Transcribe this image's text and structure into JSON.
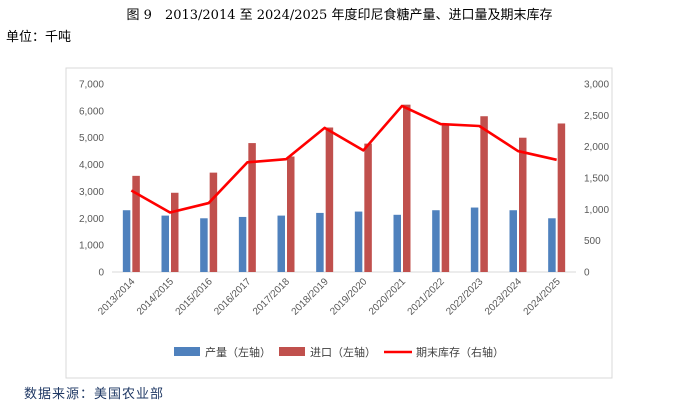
{
  "header": {
    "title": "图 9　2013/2014 至 2024/2025 年度印尼食糖产量、进口量及期末库存",
    "unit": "单位：千吨"
  },
  "footer": {
    "source": "数据来源：美国农业部"
  },
  "colors": {
    "production": "#4f81bd",
    "imports": "#c0504d",
    "stocks": "#ff0000"
  },
  "chart_data": {
    "type": "bar",
    "title": "图 9　2013/2014 至 2024/2025 年度印尼食糖产量、进口量及期末库存",
    "categories": [
      "2013/2014",
      "2014/2015",
      "2015/2016",
      "2016/2017",
      "2017/2018",
      "2018/2019",
      "2019/2020",
      "2020/2021",
      "2021/2022",
      "2022/2023",
      "2023/2024",
      "2024/2025"
    ],
    "series": [
      {
        "name": "产量（左轴）",
        "type": "bar",
        "axis": "left",
        "values": [
          2300,
          2100,
          2000,
          2050,
          2100,
          2200,
          2250,
          2130,
          2300,
          2400,
          2300,
          2000
        ]
      },
      {
        "name": "进口（左轴）",
        "type": "bar",
        "axis": "left",
        "values": [
          3580,
          2950,
          3700,
          4800,
          4300,
          5380,
          4780,
          6230,
          5500,
          5800,
          5000,
          5530
        ]
      },
      {
        "name": "期末库存（右轴）",
        "type": "line",
        "axis": "right",
        "values": [
          1300,
          950,
          1100,
          1750,
          1800,
          2300,
          1940,
          2650,
          2360,
          2330,
          1930,
          1790
        ]
      }
    ],
    "ylim_left": [
      0,
      7000
    ],
    "ylim_right": [
      0,
      3000
    ],
    "yticks_left": [
      "0",
      "1,000",
      "2,000",
      "3,000",
      "4,000",
      "5,000",
      "6,000",
      "7,000"
    ],
    "yticks_right": [
      "0",
      "500",
      "1,000",
      "1,500",
      "2,000",
      "2,500",
      "3,000"
    ],
    "grid": false,
    "legend_position": "bottom"
  }
}
